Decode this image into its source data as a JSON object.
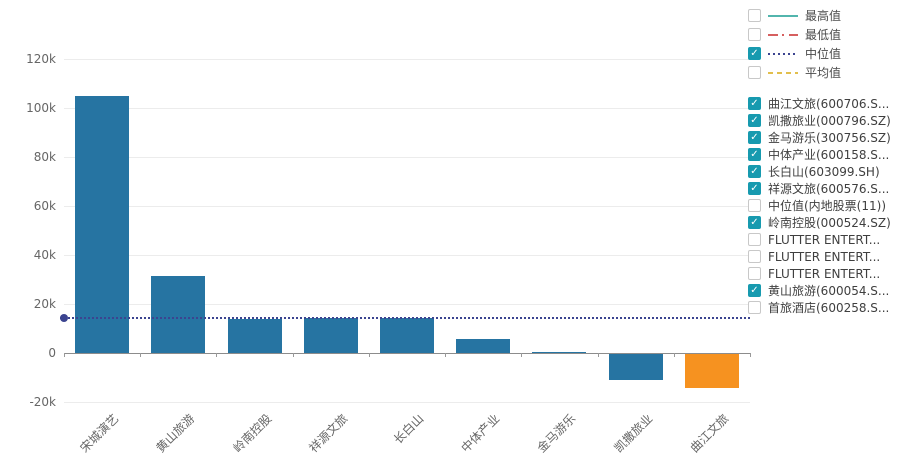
{
  "colors": {
    "bar": "#2674a2",
    "bar_highlight": "#f69220",
    "checkbox_checked": "#179aaf",
    "median": "#3b4490",
    "max_line": "#52b5ad",
    "min_line": "#d65f5f",
    "avg_line": "#e2bf4d",
    "grid": "#ececec",
    "axis": "#8c8c8c"
  },
  "measure_legend": {
    "items": [
      {
        "label": "最高值",
        "checked": false,
        "dash": "",
        "color": "#52b5ad"
      },
      {
        "label": "最低值",
        "checked": false,
        "dash": "10 4 2 5",
        "color": "#d65f5f"
      },
      {
        "label": "中位值",
        "checked": true,
        "dash": "2 3",
        "color": "#3b4490"
      },
      {
        "label": "平均值",
        "checked": false,
        "dash": "5 4",
        "color": "#e2bf4d"
      }
    ]
  },
  "series_legend": {
    "items": [
      {
        "label": "曲江文旅(600706.S...",
        "checked": true
      },
      {
        "label": "凯撒旅业(000796.SZ)",
        "checked": true
      },
      {
        "label": "金马游乐(300756.SZ)",
        "checked": true
      },
      {
        "label": "中体产业(600158.S...",
        "checked": true
      },
      {
        "label": "长白山(603099.SH)",
        "checked": true
      },
      {
        "label": "祥源文旅(600576.S...",
        "checked": true
      },
      {
        "label": "中位值(内地股票(11))",
        "checked": false
      },
      {
        "label": "岭南控股(000524.SZ)",
        "checked": true
      },
      {
        "label": "FLUTTER ENTERT...",
        "checked": false
      },
      {
        "label": "FLUTTER ENTERT...",
        "checked": false
      },
      {
        "label": "FLUTTER ENTERT...",
        "checked": false
      },
      {
        "label": "黄山旅游(600054.S...",
        "checked": true
      },
      {
        "label": "首旅酒店(600258.S...",
        "checked": false
      }
    ]
  },
  "chart_data": {
    "type": "bar",
    "categories": [
      "宋城演艺",
      "黄山旅游",
      "岭南控股",
      "祥源文旅",
      "长白山",
      "中体产业",
      "金马游乐",
      "凯撒旅业",
      "曲江文旅"
    ],
    "values": [
      105000,
      31500,
      14000,
      14300,
      14300,
      5800,
      600,
      -10400,
      -13900
    ],
    "highlight_index": 8,
    "median_line": {
      "label": "中位值",
      "value": 14500
    },
    "y_ticks": [
      {
        "label": "120k",
        "value": 120000
      },
      {
        "label": "100k",
        "value": 100000
      },
      {
        "label": "80k",
        "value": 80000
      },
      {
        "label": "60k",
        "value": 60000
      },
      {
        "label": "40k",
        "value": 40000
      },
      {
        "label": "20k",
        "value": 20000
      },
      {
        "label": "0",
        "value": 0
      },
      {
        "label": "-20k",
        "value": -20000
      }
    ],
    "ylim": [
      -20000,
      120000
    ],
    "xlabel": "",
    "ylabel": "",
    "grid": true,
    "legend_position": "right"
  }
}
